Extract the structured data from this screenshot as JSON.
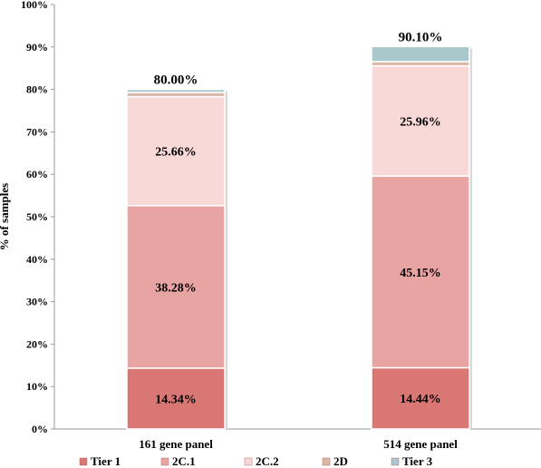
{
  "chart_data": {
    "type": "bar",
    "stacked": true,
    "ylabel": "% of samples",
    "ylim": [
      0,
      100
    ],
    "yticks": [
      "0%",
      "10%",
      "20%",
      "30%",
      "40%",
      "50%",
      "60%",
      "70%",
      "80%",
      "90%",
      "100%"
    ],
    "categories": [
      "161 gene panel",
      "514 gene panel"
    ],
    "series": [
      {
        "name": "Tier 1",
        "color": "#d97775",
        "values": [
          14.34,
          14.44
        ],
        "labels": [
          "14.34%",
          "14.44%"
        ]
      },
      {
        "name": "2C.1",
        "color": "#e8a4a3",
        "values": [
          38.28,
          45.15
        ],
        "labels": [
          "38.28%",
          "45.15%"
        ]
      },
      {
        "name": "2C.2",
        "color": "#f8d9d8",
        "values": [
          25.66,
          25.96
        ],
        "labels": [
          "25.66%",
          "25.96%"
        ]
      },
      {
        "name": "2D",
        "color": "#d9b8a8",
        "values": [
          1.0,
          1.0
        ],
        "labels": [
          "",
          ""
        ]
      },
      {
        "name": "Tier 3",
        "color": "#a8c8cc",
        "values": [
          0.72,
          3.55
        ],
        "labels": [
          "",
          ""
        ]
      }
    ],
    "totals": [
      "80.00%",
      "90.10%"
    ],
    "legend": "bottom",
    "grid": false
  }
}
